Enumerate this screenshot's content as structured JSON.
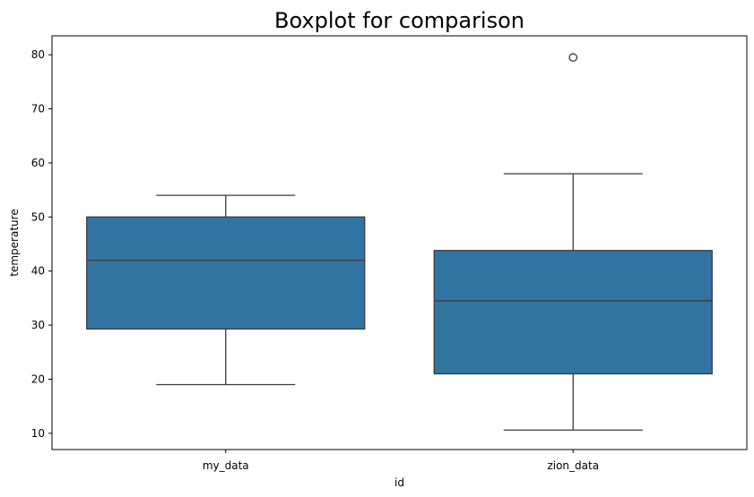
{
  "chart_data": {
    "type": "box",
    "title": "Boxplot for comparison",
    "xlabel": "id",
    "ylabel": "temperature",
    "ylim": [
      7,
      83.5
    ],
    "yticks": [
      10,
      20,
      30,
      40,
      50,
      60,
      70,
      80
    ],
    "grid": false,
    "box_color": "#3274a1",
    "line_color": "#3a3a3a",
    "categories": [
      "my_data",
      "zion_data"
    ],
    "boxes": [
      {
        "category": "my_data",
        "whisker_low": 19.0,
        "q1": 29.3,
        "median": 42.0,
        "q3": 50.0,
        "whisker_high": 54.0,
        "outliers": []
      },
      {
        "category": "zion_data",
        "whisker_low": 10.6,
        "q1": 21.0,
        "median": 34.5,
        "q3": 43.8,
        "whisker_high": 58.0,
        "outliers": [
          79.5
        ]
      }
    ]
  }
}
